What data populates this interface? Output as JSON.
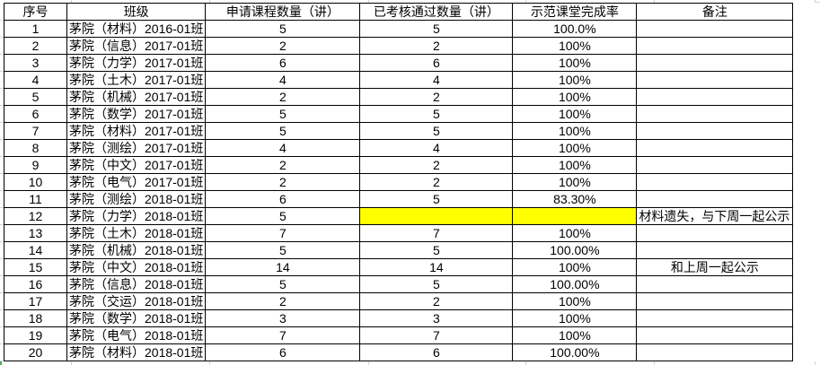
{
  "table": {
    "headers": [
      "序号",
      "班级",
      "申请课程数量（讲）",
      "已考核通过数量（讲）",
      "示范课堂完成率",
      "备注"
    ],
    "highlight_color": "#ffff00",
    "rows": [
      {
        "no": "1",
        "class": "茅院（材料）2016-01班",
        "applied": "5",
        "passed": "5",
        "rate": "100.0%",
        "remark": ""
      },
      {
        "no": "2",
        "class": "茅院（信息）2017-01班",
        "applied": "2",
        "passed": "2",
        "rate": "100%",
        "remark": ""
      },
      {
        "no": "3",
        "class": "茅院（力学）2017-01班",
        "applied": "6",
        "passed": "6",
        "rate": "100%",
        "remark": ""
      },
      {
        "no": "4",
        "class": "茅院（土木）2017-01班",
        "applied": "4",
        "passed": "4",
        "rate": "100%",
        "remark": ""
      },
      {
        "no": "5",
        "class": "茅院（机械）2017-01班",
        "applied": "2",
        "passed": "2",
        "rate": "100%",
        "remark": ""
      },
      {
        "no": "6",
        "class": "茅院（数学）2017-01班",
        "applied": "5",
        "passed": "5",
        "rate": "100%",
        "remark": ""
      },
      {
        "no": "7",
        "class": "茅院（材料）2017-01班",
        "applied": "5",
        "passed": "5",
        "rate": "100%",
        "remark": ""
      },
      {
        "no": "8",
        "class": "茅院（测绘）2017-01班",
        "applied": "4",
        "passed": "4",
        "rate": "100%",
        "remark": ""
      },
      {
        "no": "9",
        "class": "茅院（中文）2017-01班",
        "applied": "2",
        "passed": "2",
        "rate": "100%",
        "remark": ""
      },
      {
        "no": "10",
        "class": "茅院（电气）2017-01班",
        "applied": "2",
        "passed": "2",
        "rate": "100%",
        "remark": ""
      },
      {
        "no": "11",
        "class": "茅院（测绘）2018-01班",
        "applied": "6",
        "passed": "5",
        "rate": "83.30%",
        "remark": ""
      },
      {
        "no": "12",
        "class": "茅院（力学）2018-01班",
        "applied": "5",
        "passed": "",
        "rate": "",
        "remark": "材料遗失，与下周一起公示",
        "highlight": true,
        "remark_align": "left"
      },
      {
        "no": "13",
        "class": "茅院（土木）2018-01班",
        "applied": "7",
        "passed": "7",
        "rate": "100%",
        "remark": ""
      },
      {
        "no": "14",
        "class": "茅院（机械）2018-01班",
        "applied": "5",
        "passed": "5",
        "rate": "100.00%",
        "remark": ""
      },
      {
        "no": "15",
        "class": "茅院（中文）2018-01班",
        "applied": "14",
        "passed": "14",
        "rate": "100%",
        "remark": "和上周一起公示",
        "remark_align": "center"
      },
      {
        "no": "16",
        "class": "茅院（信息）2018-01班",
        "applied": "5",
        "passed": "5",
        "rate": "100.00%",
        "remark": ""
      },
      {
        "no": "17",
        "class": "茅院（交运）2018-01班",
        "applied": "2",
        "passed": "2",
        "rate": "100%",
        "remark": ""
      },
      {
        "no": "18",
        "class": "茅院（数学）2018-01班",
        "applied": "3",
        "passed": "3",
        "rate": "100%",
        "remark": ""
      },
      {
        "no": "19",
        "class": "茅院（电气）2018-01班",
        "applied": "7",
        "passed": "7",
        "rate": "100%",
        "remark": ""
      },
      {
        "no": "20",
        "class": "茅院（材料）2018-01班",
        "applied": "6",
        "passed": "6",
        "rate": "100.00%",
        "remark": ""
      }
    ]
  }
}
